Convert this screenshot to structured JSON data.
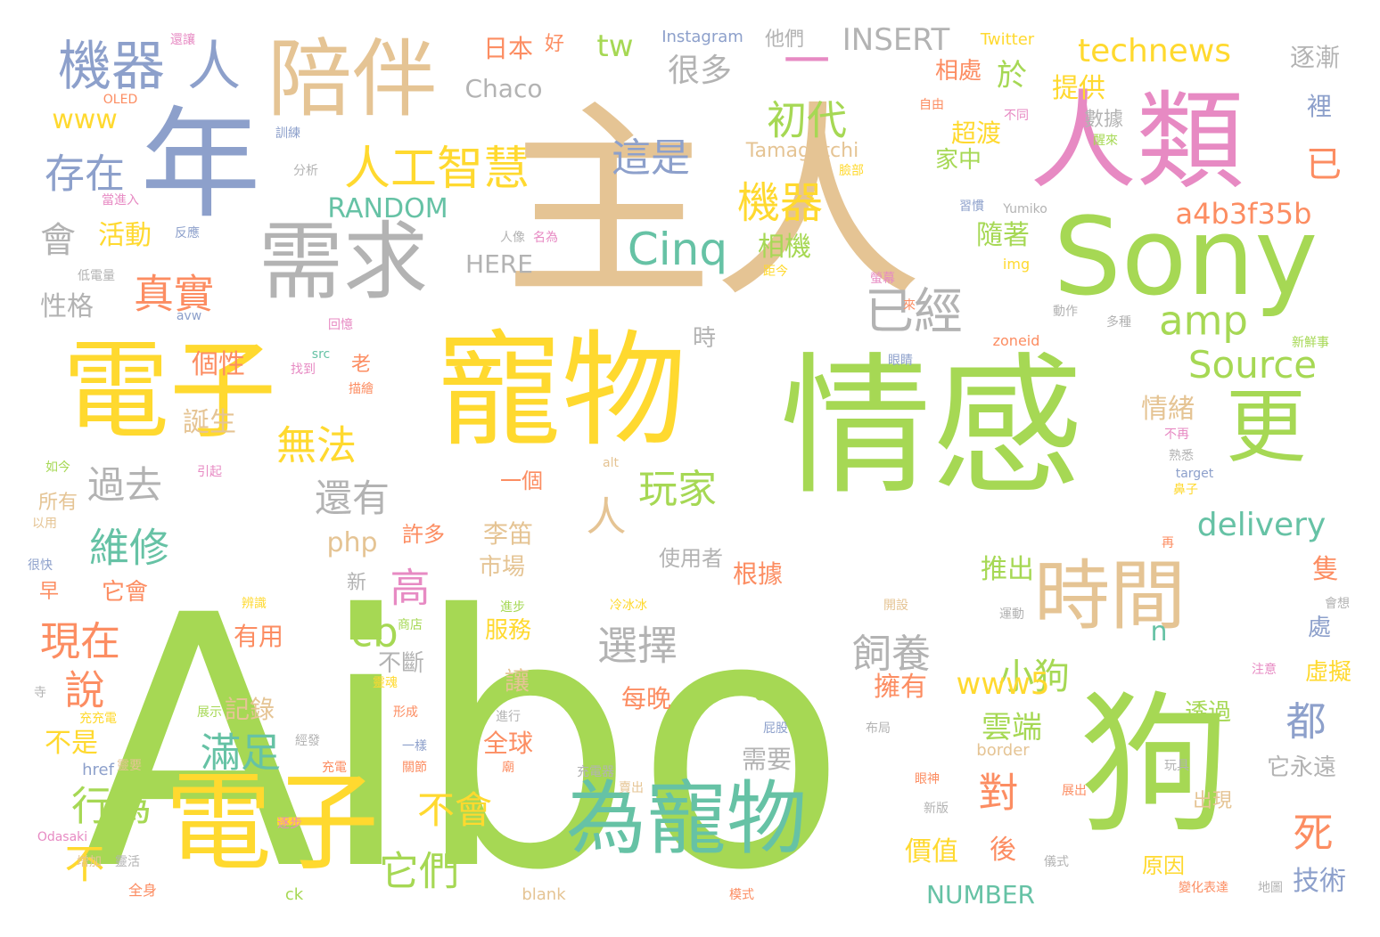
{
  "palette": {
    "green": "#a6d854",
    "tan": "#e5c494",
    "yellow": "#ffd92f",
    "teal": "#66c2a5",
    "periwinkle": "#8da0cb",
    "pink": "#e78ac3",
    "orange": "#fc8d62",
    "gray": "#b3b3b3"
  },
  "words": [
    {
      "text": "Aibo",
      "color": "#a6d854"
    },
    {
      "text": "主人",
      "color": "#e5c494"
    },
    {
      "text": "情感",
      "color": "#a6d854"
    },
    {
      "text": "寵物",
      "color": "#ffd92f"
    },
    {
      "text": "電子",
      "color": "#ffd92f"
    },
    {
      "text": "電子",
      "color": "#ffd92f"
    },
    {
      "text": "狗",
      "color": "#a6d854"
    },
    {
      "text": "人類",
      "color": "#e78ac3"
    },
    {
      "text": "Sony",
      "color": "#a6d854"
    },
    {
      "text": "年",
      "color": "#8da0cb"
    },
    {
      "text": "陪伴",
      "color": "#e5c494"
    },
    {
      "text": "需求",
      "color": "#b3b3b3"
    },
    {
      "text": "為寵物",
      "color": "#66c2a5"
    },
    {
      "text": "時間",
      "color": "#e5c494"
    },
    {
      "text": "更",
      "color": "#a6d854"
    },
    {
      "text": "機器",
      "color": "#8da0cb"
    },
    {
      "text": "人",
      "color": "#8da0cb"
    },
    {
      "text": "人工智慧",
      "color": "#ffd92f"
    },
    {
      "text": "一",
      "color": "#e78ac3"
    },
    {
      "text": "Cinq",
      "color": "#66c2a5"
    },
    {
      "text": "初代",
      "color": "#a6d854"
    },
    {
      "text": "機器",
      "color": "#ffd92f"
    },
    {
      "text": "這是",
      "color": "#8da0cb"
    },
    {
      "text": "存在",
      "color": "#8da0cb"
    },
    {
      "text": "會",
      "color": "#b3b3b3"
    },
    {
      "text": "technews",
      "color": "#ffd92f"
    },
    {
      "text": "INSERT",
      "color": "#b3b3b3"
    },
    {
      "text": "tw",
      "color": "#a6d854"
    },
    {
      "text": "很多",
      "color": "#b3b3b3"
    },
    {
      "text": "Chaco",
      "color": "#b3b3b3"
    },
    {
      "text": "www",
      "color": "#ffd92f"
    },
    {
      "text": "日本",
      "color": "#fc8d62"
    },
    {
      "text": "好",
      "color": "#fc8d62"
    },
    {
      "text": "Instagram",
      "color": "#8da0cb"
    },
    {
      "text": "他們",
      "color": "#b3b3b3"
    },
    {
      "text": "Twitter",
      "color": "#ffd92f"
    },
    {
      "text": "於",
      "color": "#a6d854"
    },
    {
      "text": "提供",
      "color": "#ffd92f"
    },
    {
      "text": "相處",
      "color": "#fc8d62"
    },
    {
      "text": "逐漸",
      "color": "#b3b3b3"
    },
    {
      "text": "裡",
      "color": "#8da0cb"
    },
    {
      "text": "已",
      "color": "#fc8d62"
    },
    {
      "text": "超渡",
      "color": "#ffd92f"
    },
    {
      "text": "數據",
      "color": "#b3b3b3"
    },
    {
      "text": "家中",
      "color": "#a6d854"
    },
    {
      "text": "Tamagotchi",
      "color": "#e5c494"
    },
    {
      "text": "RANDOM",
      "color": "#66c2a5"
    },
    {
      "text": "a4b3f35b",
      "color": "#fc8d62"
    },
    {
      "text": "活動",
      "color": "#ffd92f"
    },
    {
      "text": "相機",
      "color": "#a6d854"
    },
    {
      "text": "隨著",
      "color": "#a6d854"
    },
    {
      "text": "HERE",
      "color": "#b3b3b3"
    },
    {
      "text": "真實",
      "color": "#fc8d62"
    },
    {
      "text": "已經",
      "color": "#b3b3b3"
    },
    {
      "text": "amp",
      "color": "#a6d854"
    },
    {
      "text": "性格",
      "color": "#b3b3b3"
    },
    {
      "text": "Source",
      "color": "#a6d854"
    },
    {
      "text": "個性",
      "color": "#fc8d62"
    },
    {
      "text": "時",
      "color": "#b3b3b3"
    },
    {
      "text": "無法",
      "color": "#ffd92f"
    },
    {
      "text": "老",
      "color": "#fc8d62"
    },
    {
      "text": "情緒",
      "color": "#e5c494"
    },
    {
      "text": "誕生",
      "color": "#e5c494"
    },
    {
      "text": "過去",
      "color": "#b3b3b3"
    },
    {
      "text": "還有",
      "color": "#b3b3b3"
    },
    {
      "text": "一個",
      "color": "#fc8d62"
    },
    {
      "text": "人",
      "color": "#e5c494"
    },
    {
      "text": "玩家",
      "color": "#a6d854"
    },
    {
      "text": "delivery",
      "color": "#66c2a5"
    },
    {
      "text": "維修",
      "color": "#66c2a5"
    },
    {
      "text": "php",
      "color": "#e5c494"
    },
    {
      "text": "許多",
      "color": "#fc8d62"
    },
    {
      "text": "李笛",
      "color": "#e5c494"
    },
    {
      "text": "使用者",
      "color": "#b3b3b3"
    },
    {
      "text": "現在",
      "color": "#fc8d62"
    },
    {
      "text": "高",
      "color": "#e78ac3"
    },
    {
      "text": "市場",
      "color": "#e5c494"
    },
    {
      "text": "根據",
      "color": "#fc8d62"
    },
    {
      "text": "推出",
      "color": "#a6d854"
    },
    {
      "text": "隻",
      "color": "#fc8d62"
    },
    {
      "text": "cb",
      "color": "#a6d854"
    },
    {
      "text": "不斷",
      "color": "#b3b3b3"
    },
    {
      "text": "選擇",
      "color": "#b3b3b3"
    },
    {
      "text": "飼養",
      "color": "#b3b3b3"
    },
    {
      "text": "小狗",
      "color": "#a6d854"
    },
    {
      "text": "n",
      "color": "#66c2a5"
    },
    {
      "text": "處",
      "color": "#8da0cb"
    },
    {
      "text": "說",
      "color": "#fc8d62"
    },
    {
      "text": "有用",
      "color": "#fc8d62"
    },
    {
      "text": "服務",
      "color": "#ffd92f"
    },
    {
      "text": "a",
      "color": "#a6d854"
    },
    {
      "text": "www5",
      "color": "#ffd92f"
    },
    {
      "text": "虛擬",
      "color": "#ffd92f"
    },
    {
      "text": "擁有",
      "color": "#fc8d62"
    },
    {
      "text": "每晚",
      "color": "#fc8d62"
    },
    {
      "text": "記錄",
      "color": "#e5c494"
    },
    {
      "text": "都",
      "color": "#8da0cb"
    },
    {
      "text": "滿足",
      "color": "#66c2a5"
    },
    {
      "text": "透過",
      "color": "#a6d854"
    },
    {
      "text": "雲端",
      "color": "#a6d854"
    },
    {
      "text": "不是",
      "color": "#ffd92f"
    },
    {
      "text": "全球",
      "color": "#fc8d62"
    },
    {
      "text": "需要",
      "color": "#b3b3b3"
    },
    {
      "text": "它永遠",
      "color": "#b3b3b3"
    },
    {
      "text": "行為",
      "color": "#a6d854"
    },
    {
      "text": "對",
      "color": "#fc8d62"
    },
    {
      "text": "不會",
      "color": "#ffd92f"
    },
    {
      "text": "出現",
      "color": "#e5c494"
    },
    {
      "text": "不",
      "color": "#ffd92f"
    },
    {
      "text": "死",
      "color": "#fc8d62"
    },
    {
      "text": "它們",
      "color": "#a6d854"
    },
    {
      "text": "後",
      "color": "#fc8d62"
    },
    {
      "text": "價值",
      "color": "#ffd92f"
    },
    {
      "text": "原因",
      "color": "#ffd92f"
    },
    {
      "text": "技術",
      "color": "#8da0cb"
    },
    {
      "text": "NUMBER",
      "color": "#66c2a5"
    },
    {
      "text": "它會",
      "color": "#fc8d62"
    },
    {
      "text": "早",
      "color": "#fc8d62"
    },
    {
      "text": "新",
      "color": "#b3b3b3"
    },
    {
      "text": "讓",
      "color": "#e5c494"
    },
    {
      "text": "所有",
      "color": "#e5c494"
    },
    {
      "text": "不再",
      "color": "#e78ac3"
    },
    {
      "text": "熟悉",
      "color": "#b3b3b3"
    },
    {
      "text": "鼻子",
      "color": "#ffd92f"
    },
    {
      "text": "target",
      "color": "#8da0cb"
    },
    {
      "text": "alt",
      "color": "#e5c494"
    },
    {
      "text": "再",
      "color": "#fc8d62"
    },
    {
      "text": "運動",
      "color": "#b3b3b3"
    },
    {
      "text": "開設",
      "color": "#e5c494"
    },
    {
      "text": "會想",
      "color": "#b3b3b3"
    },
    {
      "text": "注意",
      "color": "#e78ac3"
    },
    {
      "text": "border",
      "color": "#e5c494"
    },
    {
      "text": "玩具",
      "color": "#b3b3b3"
    },
    {
      "text": "眼神",
      "color": "#fc8d62"
    },
    {
      "text": "新版",
      "color": "#b3b3b3"
    },
    {
      "text": "展出",
      "color": "#fc8d62"
    },
    {
      "text": "儀式",
      "color": "#b3b3b3"
    },
    {
      "text": "變化表達",
      "color": "#fc8d62"
    },
    {
      "text": "地圖",
      "color": "#b3b3b3"
    },
    {
      "text": "blank",
      "color": "#e5c494"
    },
    {
      "text": "ck",
      "color": "#a6d854"
    },
    {
      "text": "href",
      "color": "#8da0cb"
    },
    {
      "text": "Odasaki",
      "color": "#e78ac3"
    },
    {
      "text": "增加",
      "color": "#e5c494"
    },
    {
      "text": "全身",
      "color": "#fc8d62"
    },
    {
      "text": "靈活",
      "color": "#b3b3b3"
    },
    {
      "text": "逐步",
      "color": "#e78ac3"
    },
    {
      "text": "充電",
      "color": "#fc8d62"
    },
    {
      "text": "關節",
      "color": "#fc8d62"
    },
    {
      "text": "一樣",
      "color": "#8da0cb"
    },
    {
      "text": "經發",
      "color": "#b3b3b3"
    },
    {
      "text": "充電器",
      "color": "#b3b3b3"
    },
    {
      "text": "賣出",
      "color": "#e5c494"
    },
    {
      "text": "廟",
      "color": "#fc8d62"
    },
    {
      "text": "進行",
      "color": "#b3b3b3"
    },
    {
      "text": "形成",
      "color": "#fc8d62"
    },
    {
      "text": "展示",
      "color": "#a6d854"
    },
    {
      "text": "屁股",
      "color": "#8da0cb"
    },
    {
      "text": "模式",
      "color": "#fc8d62"
    },
    {
      "text": "布局",
      "color": "#b3b3b3"
    },
    {
      "text": "寺",
      "color": "#b3b3b3"
    },
    {
      "text": "充充電",
      "color": "#ffd92f"
    },
    {
      "text": "靈要",
      "color": "#e5c494"
    },
    {
      "text": "靈魂",
      "color": "#ffd92f"
    },
    {
      "text": "辨識",
      "color": "#ffd92f"
    },
    {
      "text": "冷冰冰",
      "color": "#ffd92f"
    },
    {
      "text": "進步",
      "color": "#a6d854"
    },
    {
      "text": "商店",
      "color": "#a6d854"
    },
    {
      "text": "如今",
      "color": "#a6d854"
    },
    {
      "text": "引起",
      "color": "#e78ac3"
    },
    {
      "text": "以用",
      "color": "#e5c494"
    },
    {
      "text": "很快",
      "color": "#8da0cb"
    },
    {
      "text": "zoneid",
      "color": "#fc8d62"
    },
    {
      "text": "新鮮事",
      "color": "#a6d854"
    },
    {
      "text": "眼睛",
      "color": "#8da0cb"
    },
    {
      "text": "動作",
      "color": "#b3b3b3"
    },
    {
      "text": "多種",
      "color": "#b3b3b3"
    },
    {
      "text": "螢幕",
      "color": "#e78ac3"
    },
    {
      "text": "來",
      "color": "#fc8d62"
    },
    {
      "text": "img",
      "color": "#ffd92f"
    },
    {
      "text": "距今",
      "color": "#ffd92f"
    },
    {
      "text": "人像",
      "color": "#b3b3b3"
    },
    {
      "text": "名為",
      "color": "#e78ac3"
    },
    {
      "text": "習慣",
      "color": "#8da0cb"
    },
    {
      "text": "Yumiko",
      "color": "#b3b3b3"
    },
    {
      "text": "臉部",
      "color": "#ffd92f"
    },
    {
      "text": "醒來",
      "color": "#a6d854"
    },
    {
      "text": "不同",
      "color": "#e78ac3"
    },
    {
      "text": "自由",
      "color": "#fc8d62"
    },
    {
      "text": "回憶",
      "color": "#e78ac3"
    },
    {
      "text": "src",
      "color": "#66c2a5"
    },
    {
      "text": "找到",
      "color": "#e78ac3"
    },
    {
      "text": "描繪",
      "color": "#fc8d62"
    },
    {
      "text": "avw",
      "color": "#8da0cb"
    },
    {
      "text": "低電量",
      "color": "#b3b3b3"
    },
    {
      "text": "反應",
      "color": "#8da0cb"
    },
    {
      "text": "當進入",
      "color": "#e78ac3"
    },
    {
      "text": "分析",
      "color": "#b3b3b3"
    },
    {
      "text": "訓練",
      "color": "#8da0cb"
    },
    {
      "text": "OLED",
      "color": "#fc8d62"
    },
    {
      "text": "還讓",
      "color": "#e78ac3"
    }
  ]
}
